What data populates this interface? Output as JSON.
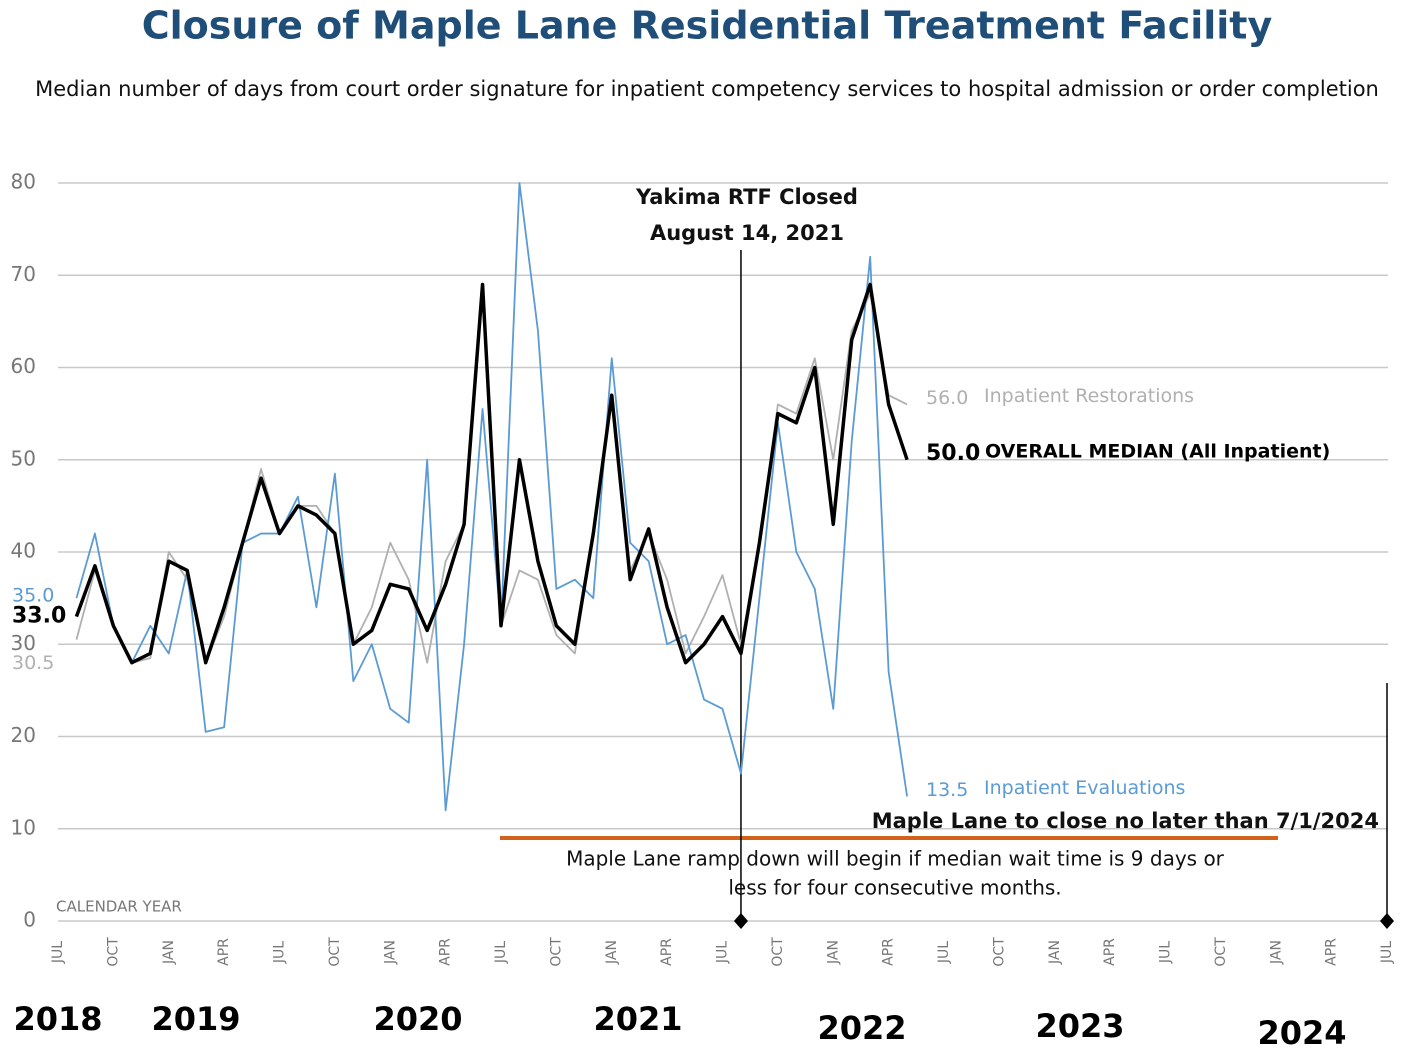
{
  "chart_data": {
    "type": "line",
    "title": "Closure of Maple Lane Residential Treatment Facility",
    "subtitle": "Median number of days from court order signature for inpatient competency services to hospital admission or order completion",
    "x_axis_note": "CALENDAR YEAR",
    "categories": [
      "JUL",
      null,
      null,
      "OCT",
      null,
      null,
      "JAN",
      null,
      null,
      "APR",
      null,
      null,
      "JUL",
      null,
      null,
      "OCT",
      null,
      null,
      "JAN",
      null,
      null,
      "APR",
      null,
      null,
      "JUL",
      null,
      null,
      "OCT",
      null,
      null,
      "JAN",
      null,
      null,
      "APR",
      null,
      null,
      "JUL",
      null,
      null,
      "OCT",
      null,
      null,
      "JAN",
      null,
      null,
      "APR",
      null,
      null,
      "JUL",
      null,
      null,
      "OCT",
      null,
      null,
      "JAN",
      null,
      null,
      "APR",
      null,
      null,
      "JUL",
      null,
      null,
      "OCT",
      null,
      null,
      "JAN",
      null,
      null,
      "APR",
      null,
      null,
      "JUL"
    ],
    "year_labels": [
      "2018",
      "2019",
      "2020",
      "2021",
      "2022",
      "2023",
      "2024"
    ],
    "ylim": [
      0,
      80
    ],
    "yticks": [
      0,
      10,
      20,
      30,
      40,
      50,
      60,
      70,
      80
    ],
    "grid": true,
    "series": [
      {
        "name": "Inpatient Restorations",
        "color": "#b0b0b0",
        "values": [
          null,
          30.5,
          38,
          32,
          28,
          28.5,
          40,
          37,
          28,
          33,
          41,
          49,
          42,
          45,
          45,
          42,
          30,
          34,
          41,
          37,
          28,
          39,
          43,
          69,
          32,
          38,
          37,
          31,
          29,
          42,
          57,
          38,
          42,
          37,
          29,
          33,
          37.5,
          30,
          41,
          56,
          55,
          61,
          50,
          64,
          68,
          57,
          56,
          null,
          null,
          null,
          null,
          null,
          null,
          null,
          null,
          null,
          null,
          null,
          null,
          null,
          null,
          null,
          null,
          null,
          null,
          null,
          null,
          null,
          null,
          null,
          null,
          null,
          null
        ],
        "value_labels": [
          null,
          "30.5",
          null,
          null,
          null,
          null,
          null,
          null,
          null,
          null,
          null,
          null,
          null,
          null,
          null,
          null,
          null,
          null,
          null,
          null,
          null,
          null,
          null,
          null,
          null,
          null,
          null,
          null,
          null,
          null,
          null,
          null,
          null,
          null,
          null,
          null,
          null,
          null,
          null,
          null,
          null,
          null,
          null,
          null,
          null,
          null,
          "56.0",
          null,
          null,
          null,
          null,
          null,
          null,
          null,
          null,
          null,
          null,
          null,
          null,
          null,
          null,
          null,
          null,
          null,
          null,
          null,
          null,
          null,
          null,
          null,
          null,
          null,
          null
        ]
      },
      {
        "name": "Inpatient Evaluations",
        "color": "#5b9bd5",
        "values": [
          null,
          35,
          42,
          32,
          28,
          32,
          29,
          38,
          20.5,
          21,
          41,
          42,
          42,
          46,
          34,
          48.5,
          26,
          30,
          23,
          21.5,
          50,
          12,
          30,
          55.5,
          32,
          80,
          64,
          36,
          37,
          35,
          61,
          41,
          39,
          30,
          31,
          24,
          23,
          16,
          35,
          54,
          40,
          36,
          23,
          52,
          72,
          27,
          13.5,
          null,
          null,
          null,
          null,
          null,
          null,
          null,
          null,
          null,
          null,
          null,
          null,
          null,
          null,
          null,
          null,
          null,
          null,
          null,
          null,
          null,
          null,
          null,
          null,
          null,
          null
        ],
        "value_labels": [
          null,
          "35.0",
          null,
          null,
          null,
          null,
          null,
          null,
          null,
          null,
          null,
          null,
          null,
          null,
          null,
          null,
          null,
          null,
          null,
          null,
          null,
          null,
          null,
          null,
          null,
          null,
          null,
          null,
          null,
          null,
          null,
          null,
          null,
          null,
          null,
          null,
          null,
          null,
          null,
          null,
          null,
          null,
          null,
          null,
          null,
          null,
          "13.5",
          null,
          null,
          null,
          null,
          null,
          null,
          null,
          null,
          null,
          null,
          null,
          null,
          null,
          null,
          null,
          null,
          null,
          null,
          null,
          null,
          null,
          null,
          null,
          null,
          null,
          null
        ]
      },
      {
        "name": "OVERALL MEDIAN (All Inpatient)",
        "color": "#000000",
        "values": [
          null,
          33,
          38.5,
          32,
          28,
          29,
          39,
          38,
          28,
          34,
          41,
          48,
          42,
          45,
          44,
          42,
          30,
          31.5,
          36.5,
          36,
          31.5,
          36.5,
          43,
          69,
          32,
          50,
          39,
          32,
          30,
          42,
          57,
          37,
          42.5,
          34,
          28,
          30,
          33,
          29,
          41,
          55,
          54,
          60,
          43,
          63,
          69,
          56,
          50,
          null,
          null,
          null,
          null,
          null,
          null,
          null,
          null,
          null,
          null,
          null,
          null,
          null,
          null,
          null,
          null,
          null,
          null,
          null,
          null,
          null,
          null,
          null,
          null,
          null,
          null
        ],
        "value_labels": [
          null,
          "33.0",
          null,
          null,
          null,
          null,
          null,
          null,
          null,
          null,
          null,
          null,
          null,
          null,
          null,
          null,
          null,
          null,
          null,
          null,
          null,
          null,
          null,
          null,
          null,
          null,
          null,
          null,
          null,
          null,
          null,
          null,
          null,
          null,
          null,
          null,
          null,
          null,
          null,
          null,
          null,
          null,
          null,
          null,
          null,
          null,
          "50.0",
          null,
          null,
          null,
          null,
          null,
          null,
          null,
          null,
          null,
          null,
          null,
          null,
          null,
          null,
          null,
          null,
          null,
          null,
          null,
          null,
          null,
          null,
          null,
          null,
          null,
          null
        ]
      }
    ],
    "events": [
      {
        "text": [
          "Yakima RTF Closed",
          "August 14, 2021"
        ],
        "x": 37
      },
      {
        "text": [
          "Maple Lane to close no later than 7/1/2024"
        ],
        "x": 72
      }
    ],
    "threshold": {
      "value": 9,
      "text": [
        "Maple Lane ramp down will begin if median wait time is 9 days or",
        "less for four consecutive months."
      ]
    }
  }
}
